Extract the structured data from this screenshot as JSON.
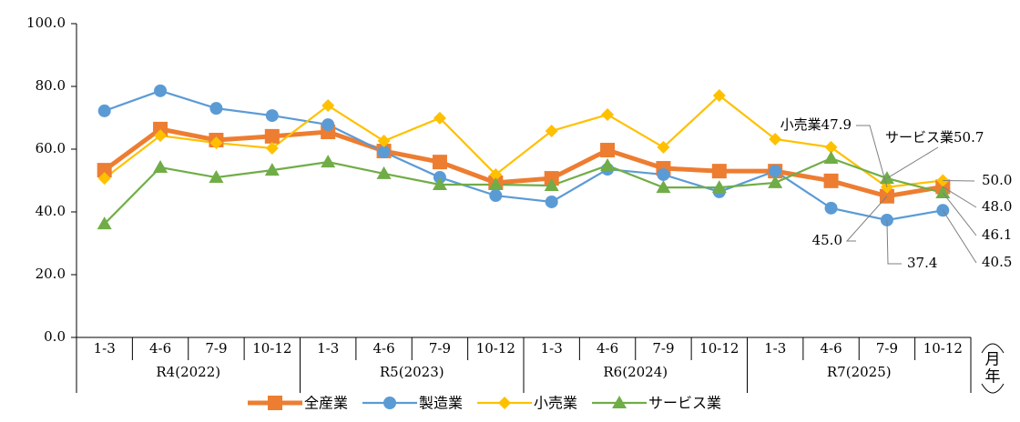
{
  "chart_data": {
    "type": "line",
    "categories": [
      "1-3",
      "4-6",
      "7-9",
      "10-12",
      "1-3",
      "4-6",
      "7-9",
      "10-12",
      "1-3",
      "4-6",
      "7-9",
      "10-12",
      "1-3",
      "4-6",
      "7-9",
      "10-12"
    ],
    "groups": [
      "R4(2022)",
      "R5(2023)",
      "R6(2024)",
      "R7(2025)"
    ],
    "x_unit": [
      "月",
      "年"
    ],
    "ylim": [
      0,
      100
    ],
    "yticks": [
      {
        "value": 0,
        "label": "0.0"
      },
      {
        "value": 20,
        "label": "20.0"
      },
      {
        "value": 40,
        "label": "40.0"
      },
      {
        "value": 60,
        "label": "60.0"
      },
      {
        "value": 80,
        "label": "80.0"
      },
      {
        "value": 100,
        "label": "100.0"
      }
    ],
    "grid": false,
    "series": [
      {
        "name": "全産業",
        "color": "#ED7D31",
        "marker": "square",
        "values": [
          53.3,
          66.4,
          62.9,
          64.1,
          65.5,
          59.4,
          55.9,
          49.3,
          50.7,
          59.7,
          53.9,
          53.0,
          53.0,
          49.9,
          45.0,
          48.0
        ],
        "value_labels": [
          null,
          null,
          null,
          null,
          null,
          null,
          null,
          null,
          null,
          null,
          null,
          null,
          null,
          null,
          "45.0",
          "48.0"
        ]
      },
      {
        "name": "製造業",
        "color": "#5B9BD5",
        "marker": "circle",
        "values": [
          72.2,
          78.6,
          73.0,
          70.7,
          67.8,
          59.1,
          51.0,
          45.2,
          43.2,
          53.6,
          51.9,
          46.4,
          53.0,
          41.2,
          37.4,
          40.5
        ],
        "value_labels": [
          null,
          null,
          null,
          null,
          null,
          null,
          null,
          null,
          null,
          null,
          null,
          null,
          null,
          null,
          "37.4",
          "40.5"
        ]
      },
      {
        "name": "小売業",
        "color": "#FFC000",
        "marker": "diamond",
        "values": [
          50.7,
          64.3,
          62.0,
          60.3,
          73.9,
          62.6,
          69.9,
          51.9,
          65.8,
          71.0,
          60.6,
          77.1,
          63.2,
          60.6,
          47.9,
          50.0
        ],
        "value_labels": [
          null,
          null,
          null,
          null,
          null,
          null,
          null,
          null,
          null,
          null,
          null,
          null,
          null,
          null,
          "小売業47.9",
          "50.0"
        ]
      },
      {
        "name": "サービス業",
        "color": "#70AD47",
        "marker": "triangle",
        "values": [
          36.2,
          54.2,
          51.0,
          53.3,
          55.9,
          52.2,
          48.7,
          48.7,
          48.4,
          54.8,
          47.8,
          47.8,
          49.3,
          57.1,
          50.7,
          46.1
        ],
        "value_labels": [
          null,
          null,
          null,
          null,
          null,
          null,
          null,
          null,
          null,
          null,
          null,
          null,
          null,
          null,
          "サービス業50.7",
          "46.1"
        ]
      }
    ]
  }
}
